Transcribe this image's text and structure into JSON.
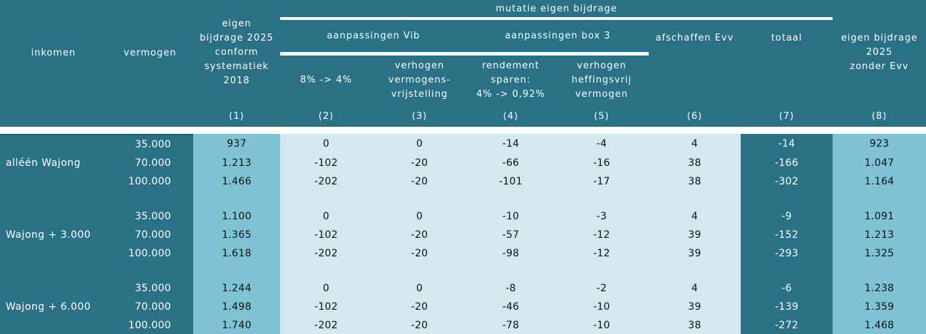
{
  "colors": {
    "teal": "#2a7185",
    "medium_blue": "#7fc2d4",
    "light_blue": "#d3e9ef",
    "header_text": "#ffffff",
    "body_text": "#111111",
    "underline": "#ffffff"
  },
  "chart_data": {
    "type": "table",
    "header": {
      "inkomen": "inkomen",
      "vermogen": "vermogen",
      "col1": "eigen\nbijdrage 2025\nconform\nsystematiek\n2018",
      "mutatie_group": "mutatie eigen bijdrage",
      "vib_group": "aanpassingen Vib",
      "box3_group": "aanpassingen box 3",
      "afschaffen_evv": "afschaffen Evv",
      "totaal": "totaal",
      "col8": "eigen bijdrage\n2025\nzonder Evv",
      "sub_col2": "8% -> 4%",
      "sub_col3": "verhogen\nvermogens-\nvrijstelling",
      "sub_col4": "rendement\nsparen:\n4% -> 0,92%",
      "sub_col5": "verhogen\nheffingsvrij\nvermogen",
      "col_numbers": [
        "(1)",
        "(2)",
        "(3)",
        "(4)",
        "(5)",
        "(6)",
        "(7)",
        "(8)"
      ]
    },
    "groups": [
      {
        "label": "alléén Wajong",
        "rows": [
          {
            "vermogen": "35.000",
            "values": [
              "937",
              "0",
              "0",
              "-14",
              "-4",
              "4",
              "-14",
              "923"
            ]
          },
          {
            "vermogen": "70.000",
            "values": [
              "1.213",
              "-102",
              "-20",
              "-66",
              "-16",
              "38",
              "-166",
              "1.047"
            ]
          },
          {
            "vermogen": "100.000",
            "values": [
              "1.466",
              "-202",
              "-20",
              "-101",
              "-17",
              "38",
              "-302",
              "1.164"
            ]
          }
        ]
      },
      {
        "label": "Wajong + 3.000",
        "rows": [
          {
            "vermogen": "35.000",
            "values": [
              "1.100",
              "0",
              "0",
              "-10",
              "-3",
              "4",
              "-9",
              "1.091"
            ]
          },
          {
            "vermogen": "70.000",
            "values": [
              "1.365",
              "-102",
              "-20",
              "-57",
              "-12",
              "39",
              "-152",
              "1.213"
            ]
          },
          {
            "vermogen": "100.000",
            "values": [
              "1.618",
              "-202",
              "-20",
              "-98",
              "-12",
              "39",
              "-293",
              "1.325"
            ]
          }
        ]
      },
      {
        "label": "Wajong + 6.000",
        "rows": [
          {
            "vermogen": "35.000",
            "values": [
              "1.244",
              "0",
              "0",
              "-8",
              "-2",
              "4",
              "-6",
              "1.238"
            ]
          },
          {
            "vermogen": "70.000",
            "values": [
              "1.498",
              "-102",
              "-20",
              "-46",
              "-10",
              "39",
              "-139",
              "1.359"
            ]
          },
          {
            "vermogen": "100.000",
            "values": [
              "1.740",
              "-202",
              "-20",
              "-78",
              "-10",
              "38",
              "-272",
              "1.468"
            ]
          }
        ]
      }
    ]
  }
}
